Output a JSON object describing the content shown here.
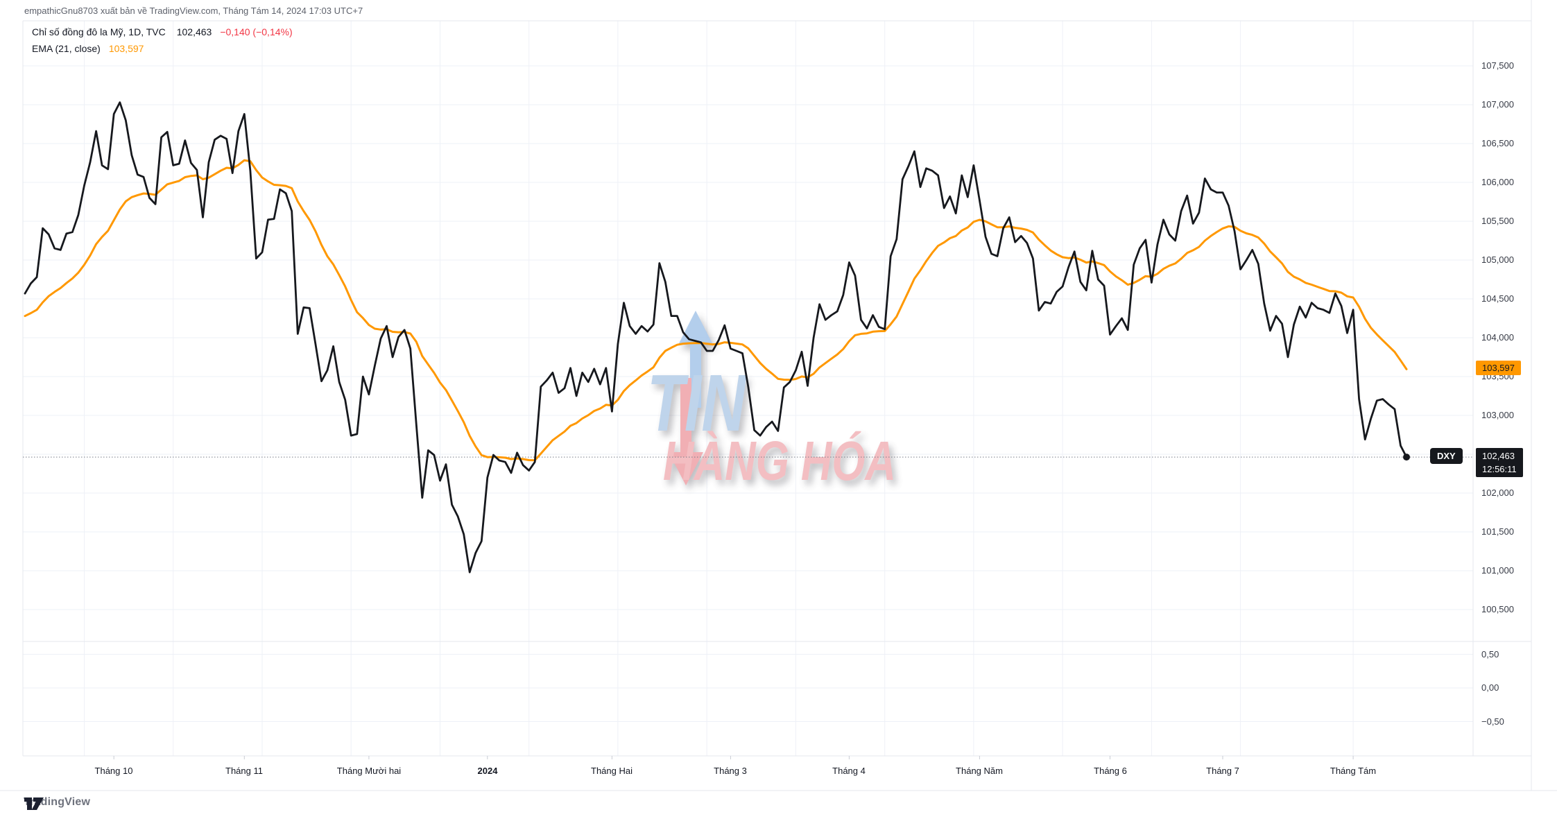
{
  "attribution": "empathicGnu8703 xuất bản về TradingView.com, Tháng Tám 14, 2024 17:03 UTC+7",
  "legend": {
    "instrument": "Chỉ số đồng đô la Mỹ, 1D, TVC",
    "last": "102,463",
    "change": "−0,140 (−0,14%)",
    "ema_label": "EMA (21, close)",
    "ema_value": "103,597"
  },
  "watermark": {
    "line1": "TIN",
    "line2": "HÀNG HÓA"
  },
  "badges": {
    "symbol": "DXY",
    "price": "102,463",
    "countdown": "12:56:11",
    "ema": "103,597"
  },
  "price_scale": [
    {
      "text": "107,500",
      "value": 107.5
    },
    {
      "text": "107,000",
      "value": 107.0
    },
    {
      "text": "106,500",
      "value": 106.5
    },
    {
      "text": "106,000",
      "value": 106.0
    },
    {
      "text": "105,500",
      "value": 105.5
    },
    {
      "text": "105,000",
      "value": 105.0
    },
    {
      "text": "104,500",
      "value": 104.5
    },
    {
      "text": "104,000",
      "value": 104.0
    },
    {
      "text": "103,500",
      "value": 103.5
    },
    {
      "text": "103,000",
      "value": 103.0
    },
    {
      "text": "102,500",
      "value": 102.5
    },
    {
      "text": "102,000",
      "value": 102.0
    },
    {
      "text": "101,500",
      "value": 101.5
    },
    {
      "text": "101,000",
      "value": 101.0
    },
    {
      "text": "100,500",
      "value": 100.5
    }
  ],
  "lower_scale": [
    {
      "text": "0,50",
      "value": 0.5
    },
    {
      "text": "0,00",
      "value": 0.0
    },
    {
      "text": "−0,50",
      "value": -0.5
    }
  ],
  "time_axis": [
    {
      "label": "Tháng 10",
      "index": 15
    },
    {
      "label": "Tháng 11",
      "index": 37
    },
    {
      "label": "Tháng Mười hai",
      "index": 58
    },
    {
      "label": "2024",
      "index": 78
    },
    {
      "label": "Tháng Hai",
      "index": 99
    },
    {
      "label": "Tháng 3",
      "index": 119
    },
    {
      "label": "Tháng 4",
      "index": 139
    },
    {
      "label": "Tháng Năm",
      "index": 161
    },
    {
      "label": "Tháng 6",
      "index": 183
    },
    {
      "label": "Tháng 7",
      "index": 202
    },
    {
      "label": "Tháng Tám",
      "index": 224
    }
  ],
  "footer": {
    "brand": "TradingView"
  },
  "colors": {
    "price_line": "#16181d",
    "ema_line": "#ff9800",
    "change_negative": "#f23645",
    "price_badge_bg": "#16181d",
    "ema_badge_bg": "#ff9800",
    "grid": "#eef1f7",
    "frame": "#e4e7ee",
    "watermark_blue": "#b7cfe9",
    "watermark_pink": "#f2b6ba"
  },
  "chart_data": {
    "type": "line",
    "title": "Chỉ số đồng đô la Mỹ",
    "symbol": "DXY",
    "exchange": "TVC",
    "interval": "1D",
    "start_date": "2023-09-11",
    "end_date": "2024-08-14",
    "frequency": "daily (trading days)",
    "last_close": 102.463,
    "ema_last": 103.597,
    "y_range_price": [
      100.3,
      108.0
    ],
    "y_ticks_price": [
      100.5,
      101.0,
      101.5,
      102.0,
      102.5,
      103.0,
      103.5,
      104.0,
      104.5,
      105.0,
      105.5,
      106.0,
      106.5,
      107.0,
      107.5
    ],
    "y_ticks_lower": [
      0.5,
      0.0,
      -0.5
    ],
    "x_tick_labels": [
      "Tháng 10",
      "Tháng 11",
      "Tháng Mười hai",
      "2024",
      "Tháng Hai",
      "Tháng 3",
      "Tháng 4",
      "Tháng Năm",
      "Tháng 6",
      "Tháng 7",
      "Tháng Tám"
    ],
    "x_tick_indices": [
      15,
      37,
      58,
      78,
      99,
      119,
      139,
      161,
      183,
      202,
      224
    ],
    "grid": "on",
    "legend_position": "top-left",
    "series": [
      {
        "name": "close",
        "values": [
          104.57,
          104.7,
          104.78,
          105.41,
          105.33,
          105.15,
          105.13,
          105.34,
          105.36,
          105.58,
          105.96,
          106.26,
          106.66,
          106.22,
          106.17,
          106.88,
          107.03,
          106.8,
          106.35,
          106.1,
          106.07,
          105.8,
          105.72,
          106.58,
          106.65,
          106.22,
          106.24,
          106.54,
          106.25,
          106.16,
          105.55,
          106.26,
          106.55,
          106.6,
          106.56,
          106.12,
          106.66,
          106.88,
          106.15,
          105.02,
          105.1,
          105.52,
          105.53,
          105.91,
          105.86,
          105.63,
          104.05,
          104.39,
          104.38,
          103.92,
          103.44,
          103.58,
          103.89,
          103.43,
          103.2,
          102.74,
          102.76,
          103.5,
          103.27,
          103.64,
          103.99,
          104.15,
          103.75,
          104.01,
          104.1,
          103.86,
          102.88,
          101.94,
          102.55,
          102.49,
          102.16,
          102.37,
          101.85,
          101.7,
          101.47,
          100.98,
          101.23,
          101.38,
          102.2,
          102.49,
          102.42,
          102.4,
          102.26,
          102.52,
          102.36,
          102.29,
          102.4,
          103.37,
          103.45,
          103.55,
          103.29,
          103.35,
          103.61,
          103.25,
          103.55,
          103.43,
          103.6,
          103.4,
          103.61,
          103.05,
          103.92,
          104.45,
          104.15,
          104.05,
          104.15,
          104.08,
          104.17,
          104.96,
          104.72,
          104.28,
          104.28,
          104.07,
          103.98,
          103.96,
          103.94,
          103.83,
          103.83,
          103.97,
          104.16,
          103.86,
          103.83,
          103.8,
          103.36,
          102.81,
          102.74,
          102.85,
          102.92,
          102.8,
          103.36,
          103.43,
          103.58,
          103.82,
          103.38,
          104.0,
          104.43,
          104.23,
          104.29,
          104.34,
          104.55,
          104.97,
          104.8,
          104.23,
          104.12,
          104.29,
          104.14,
          104.11,
          105.05,
          105.27,
          106.04,
          106.21,
          106.4,
          105.94,
          106.18,
          106.15,
          106.09,
          105.67,
          105.82,
          105.6,
          106.09,
          105.81,
          106.22,
          105.77,
          105.3,
          105.08,
          105.05,
          105.41,
          105.55,
          105.23,
          105.31,
          105.22,
          105.02,
          104.35,
          104.46,
          104.44,
          104.59,
          104.66,
          104.91,
          105.11,
          104.72,
          104.61,
          105.12,
          104.75,
          104.67,
          104.04,
          104.15,
          104.25,
          104.1,
          104.94,
          105.15,
          105.26,
          104.71,
          105.2,
          105.52,
          105.33,
          105.25,
          105.63,
          105.83,
          105.47,
          105.61,
          106.05,
          105.91,
          105.87,
          105.87,
          105.7,
          105.37,
          104.88,
          105.0,
          105.13,
          104.95,
          104.44,
          104.09,
          104.28,
          104.18,
          103.75,
          104.17,
          104.4,
          104.26,
          104.45,
          104.38,
          104.36,
          104.32,
          104.57,
          104.41,
          104.06,
          104.36,
          103.21,
          102.69,
          102.96,
          103.19,
          103.21,
          103.14,
          103.08,
          102.61,
          102.463
        ]
      },
      {
        "name": "EMA21",
        "derived": true,
        "period": 21,
        "seed": 104.25
      }
    ]
  }
}
